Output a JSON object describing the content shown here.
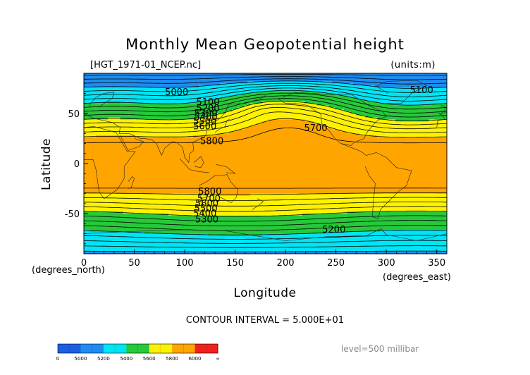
{
  "title": "Monthly Mean Geopotential height",
  "file_label": "[HGT_1971-01_NCEP.nc]",
  "units_label": "(units:m)",
  "xlabel": "Longitude",
  "ylabel": "Latitude",
  "x_units": "(degrees_east)",
  "y_units": "(degrees_north)",
  "contour_interval": "CONTOUR INTERVAL = 5.000E+01",
  "level_label": "level=500 millibar",
  "chart_data": {
    "type": "heatmap",
    "title": "Monthly Mean Geopotential height",
    "xlabel": "Longitude",
    "ylabel": "Latitude",
    "xlim": [
      0,
      360
    ],
    "ylim": [
      -90,
      90
    ],
    "x_ticks": [
      0,
      50,
      100,
      150,
      200,
      250,
      300,
      350
    ],
    "y_ticks": [
      50,
      0,
      -50
    ],
    "variable_units": "m",
    "level": "500 millibar",
    "contour_interval": 50,
    "color_bands": [
      {
        "from": 0,
        "to": 5000,
        "color": "#1a5fe0"
      },
      {
        "from": 5000,
        "to": 5200,
        "color": "#1e8cf0"
      },
      {
        "from": 5200,
        "to": 5400,
        "color": "#00e5f5"
      },
      {
        "from": 5400,
        "to": 5600,
        "color": "#27c93a"
      },
      {
        "from": 5600,
        "to": 5800,
        "color": "#fff200"
      },
      {
        "from": 5800,
        "to": 6000,
        "color": "#ffa500"
      },
      {
        "from": 6000,
        "to": null,
        "color": "#f02020"
      }
    ],
    "colorbar_labels": [
      "0",
      "5000",
      "5200",
      "5400",
      "5600",
      "5800",
      "6000",
      "∞"
    ],
    "contour_labels": [
      {
        "text": "5000",
        "lon": 92,
        "lat": 71
      },
      {
        "text": "5100",
        "lon": 335,
        "lat": 73
      },
      {
        "text": "5100",
        "lon": 123,
        "lat": 61
      },
      {
        "text": "5200",
        "lon": 123,
        "lat": 55
      },
      {
        "text": "5300",
        "lon": 121,
        "lat": 50
      },
      {
        "text": "5400",
        "lon": 121,
        "lat": 46
      },
      {
        "text": "5500",
        "lon": 120,
        "lat": 42
      },
      {
        "text": "5600",
        "lon": 120,
        "lat": 37
      },
      {
        "text": "5700",
        "lon": 230,
        "lat": 35
      },
      {
        "text": "5800",
        "lon": 127,
        "lat": 22
      },
      {
        "text": "5800",
        "lon": 125,
        "lat": -28
      },
      {
        "text": "5700",
        "lon": 124,
        "lat": -35
      },
      {
        "text": "5600",
        "lon": 122,
        "lat": -40
      },
      {
        "text": "5500",
        "lon": 121,
        "lat": -45
      },
      {
        "text": "5400",
        "lon": 120,
        "lat": -50
      },
      {
        "text": "5300",
        "lon": 122,
        "lat": -56
      },
      {
        "text": "5200",
        "lon": 248,
        "lat": -66
      }
    ]
  }
}
